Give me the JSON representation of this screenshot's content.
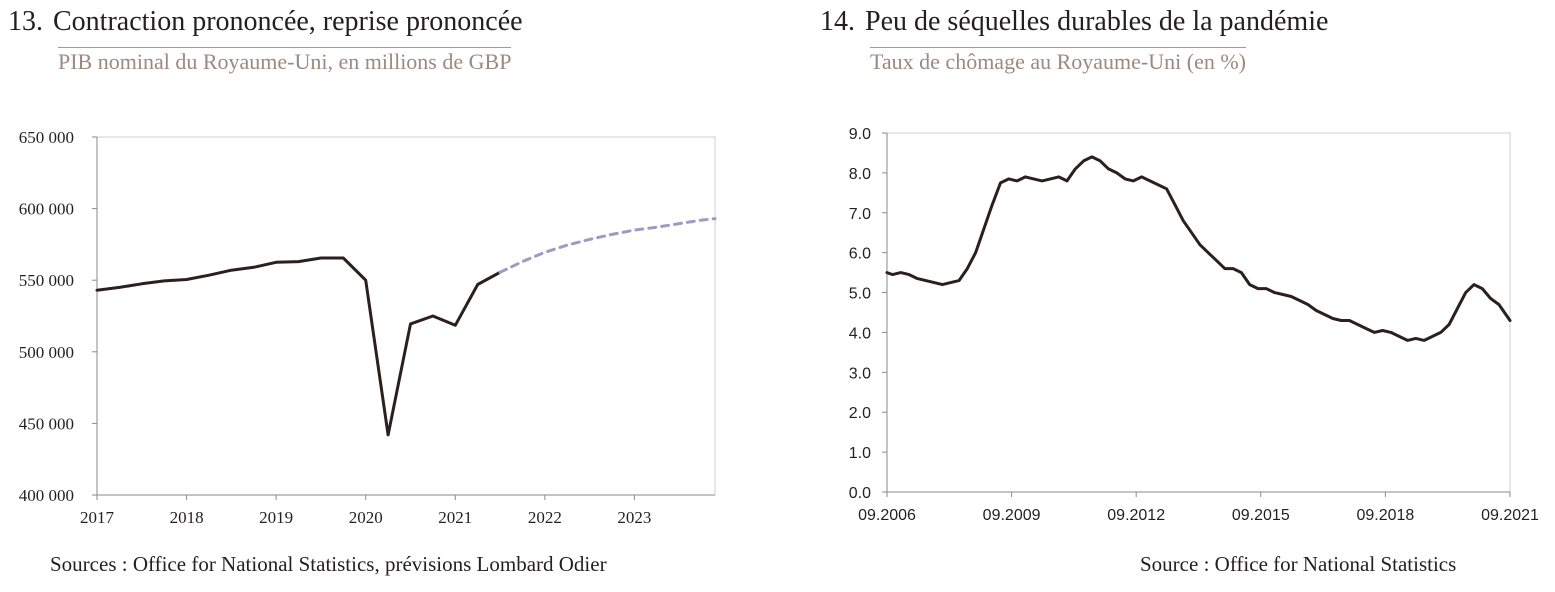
{
  "charts": {
    "left": {
      "number": "13.",
      "title": "Contraction prononcée, reprise prononcée",
      "subtitle": "PIB nominal du Royaume-Uni, en millions de GBP",
      "source": "Sources : Office for National Statistics, prévisions Lombard Odier"
    },
    "right": {
      "number": "14.",
      "title": "Peu de séquelles durables de la pandémie",
      "subtitle": "Taux de chômage au Royaume-Uni (en %)",
      "source": "Source : Office for National Statistics"
    }
  },
  "chart_data": [
    {
      "type": "line",
      "title": "Contraction prononcée, reprise prononcée",
      "subtitle": "PIB nominal du Royaume-Uni, en millions de GBP",
      "xlim": [
        2017.0,
        2023.9
      ],
      "ylim": [
        400000,
        650000
      ],
      "y_ticks": [
        400000,
        450000,
        500000,
        550000,
        600000,
        650000
      ],
      "y_tick_labels": [
        "400 000",
        "450 000",
        "500 000",
        "550 000",
        "600 000",
        "650 000"
      ],
      "x_ticks": [
        2017,
        2018,
        2019,
        2020,
        2021,
        2022,
        2023
      ],
      "x_tick_labels": [
        "2017",
        "2018",
        "2019",
        "2020",
        "2021",
        "2022",
        "2023"
      ],
      "grid": false,
      "series": [
        {
          "name": "",
          "style": "solid",
          "color": "#2b1f1f",
          "points": [
            [
              2017.0,
              543000
            ],
            [
              2017.25,
              545000
            ],
            [
              2017.5,
              547500
            ],
            [
              2017.75,
              549500
            ],
            [
              2018.0,
              550500
            ],
            [
              2018.25,
              553500
            ],
            [
              2018.5,
              557000
            ],
            [
              2018.75,
              559000
            ],
            [
              2019.0,
              562500
            ],
            [
              2019.25,
              563000
            ],
            [
              2019.5,
              565500
            ],
            [
              2019.75,
              565500
            ],
            [
              2020.0,
              550000
            ],
            [
              2020.25,
              442000
            ],
            [
              2020.5,
              519500
            ],
            [
              2020.75,
              525000
            ],
            [
              2021.0,
              518500
            ],
            [
              2021.25,
              547000
            ],
            [
              2021.5,
              555500
            ]
          ]
        },
        {
          "name": "",
          "style": "dashed",
          "color": "#9f9ac4",
          "points": [
            [
              2021.5,
              555500
            ],
            [
              2021.75,
              563000
            ],
            [
              2022.0,
              569500
            ],
            [
              2022.25,
              574500
            ],
            [
              2022.5,
              578500
            ],
            [
              2022.75,
              582000
            ],
            [
              2023.0,
              585000
            ],
            [
              2023.25,
              587000
            ],
            [
              2023.5,
              589500
            ],
            [
              2023.75,
              592000
            ],
            [
              2023.9,
              593000
            ]
          ]
        }
      ]
    },
    {
      "type": "line",
      "title": "Peu de séquelles durables de la pandémie",
      "subtitle": "Taux de chômage au Royaume-Uni (en %)",
      "xlim": [
        2006.667,
        2021.667
      ],
      "ylim": [
        0,
        9
      ],
      "y_ticks": [
        0,
        1,
        2,
        3,
        4,
        5,
        6,
        7,
        8,
        9
      ],
      "y_tick_labels": [
        "0.0",
        "1.0",
        "2.0",
        "3.0",
        "4.0",
        "5.0",
        "6.0",
        "7.0",
        "8.0",
        "9.0"
      ],
      "x_ticks": [
        2006.667,
        2009.667,
        2012.667,
        2015.667,
        2018.667,
        2021.667
      ],
      "x_tick_labels": [
        "09.2006",
        "09.2009",
        "09.2012",
        "09.2015",
        "09.2018",
        "09.2021"
      ],
      "grid": false,
      "series": [
        {
          "name": "",
          "style": "solid",
          "color": "#2b1f1f",
          "points": [
            [
              2006.667,
              5.5
            ],
            [
              2006.8,
              5.45
            ],
            [
              2007.0,
              5.5
            ],
            [
              2007.2,
              5.45
            ],
            [
              2007.4,
              5.35
            ],
            [
              2007.6,
              5.3
            ],
            [
              2007.8,
              5.25
            ],
            [
              2008.0,
              5.2
            ],
            [
              2008.2,
              5.25
            ],
            [
              2008.4,
              5.3
            ],
            [
              2008.6,
              5.6
            ],
            [
              2008.8,
              6.0
            ],
            [
              2009.0,
              6.6
            ],
            [
              2009.2,
              7.2
            ],
            [
              2009.4,
              7.75
            ],
            [
              2009.6,
              7.85
            ],
            [
              2009.8,
              7.8
            ],
            [
              2010.0,
              7.9
            ],
            [
              2010.2,
              7.85
            ],
            [
              2010.4,
              7.8
            ],
            [
              2010.6,
              7.85
            ],
            [
              2010.8,
              7.9
            ],
            [
              2011.0,
              7.8
            ],
            [
              2011.2,
              8.1
            ],
            [
              2011.4,
              8.3
            ],
            [
              2011.6,
              8.4
            ],
            [
              2011.8,
              8.3
            ],
            [
              2012.0,
              8.1
            ],
            [
              2012.2,
              8.0
            ],
            [
              2012.4,
              7.85
            ],
            [
              2012.6,
              7.8
            ],
            [
              2012.8,
              7.9
            ],
            [
              2013.0,
              7.8
            ],
            [
              2013.2,
              7.7
            ],
            [
              2013.4,
              7.6
            ],
            [
              2013.6,
              7.2
            ],
            [
              2013.8,
              6.8
            ],
            [
              2014.0,
              6.5
            ],
            [
              2014.2,
              6.2
            ],
            [
              2014.4,
              6.0
            ],
            [
              2014.6,
              5.8
            ],
            [
              2014.8,
              5.6
            ],
            [
              2015.0,
              5.6
            ],
            [
              2015.2,
              5.5
            ],
            [
              2015.4,
              5.2
            ],
            [
              2015.6,
              5.1
            ],
            [
              2015.8,
              5.1
            ],
            [
              2016.0,
              5.0
            ],
            [
              2016.2,
              4.95
            ],
            [
              2016.4,
              4.9
            ],
            [
              2016.6,
              4.8
            ],
            [
              2016.8,
              4.7
            ],
            [
              2017.0,
              4.55
            ],
            [
              2017.2,
              4.45
            ],
            [
              2017.4,
              4.35
            ],
            [
              2017.6,
              4.3
            ],
            [
              2017.8,
              4.3
            ],
            [
              2018.0,
              4.2
            ],
            [
              2018.2,
              4.1
            ],
            [
              2018.4,
              4.0
            ],
            [
              2018.6,
              4.05
            ],
            [
              2018.8,
              4.0
            ],
            [
              2019.0,
              3.9
            ],
            [
              2019.2,
              3.8
            ],
            [
              2019.4,
              3.85
            ],
            [
              2019.6,
              3.8
            ],
            [
              2019.8,
              3.9
            ],
            [
              2020.0,
              4.0
            ],
            [
              2020.2,
              4.2
            ],
            [
              2020.4,
              4.6
            ],
            [
              2020.6,
              5.0
            ],
            [
              2020.8,
              5.2
            ],
            [
              2021.0,
              5.1
            ],
            [
              2021.2,
              4.85
            ],
            [
              2021.4,
              4.7
            ],
            [
              2021.667,
              4.3
            ]
          ]
        }
      ]
    }
  ]
}
